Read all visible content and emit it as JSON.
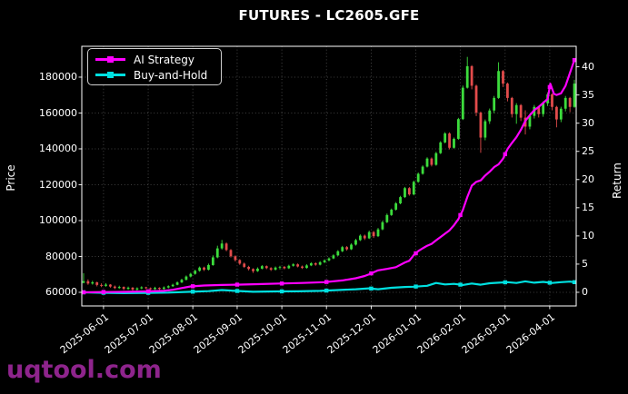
{
  "title": "FUTURES - LC2605.GFE",
  "watermark": "uqtool.com",
  "legend": {
    "items": [
      {
        "label": "AI Strategy",
        "color": "#ff00ff"
      },
      {
        "label": "Buy-and-Hold",
        "color": "#00e0e0"
      }
    ]
  },
  "colors": {
    "background": "#000000",
    "text": "#ffffff",
    "grid": "#545454",
    "spine": "#ffffff",
    "up": "#3cdc3c",
    "down": "#e24b4b",
    "ai": "#ff00ff",
    "bh": "#00e0e0",
    "watermark": "#8e248c"
  },
  "chart_data": {
    "type": "candlestick+line",
    "title": "FUTURES - LC2605.GFE",
    "grid": "dotted",
    "legend_position": "upper-left",
    "x": {
      "tick_labels": [
        "2025-06-01",
        "2025-07-01",
        "2025-08-01",
        "2025-09-01",
        "2025-10-01",
        "2025-11-01",
        "2025-12-01",
        "2026-01-01",
        "2026-02-01",
        "2026-03-01",
        "2026-04-01"
      ],
      "tick_index": [
        4.47,
        14.48,
        24.48,
        34.42,
        44.43,
        54.43,
        64.46,
        74.46,
        84.44,
        94.47,
        104.47
      ],
      "index_range": [
        -0.4,
        110.4
      ]
    },
    "price_axis": {
      "label": "Price",
      "ticks": [
        60000,
        80000,
        100000,
        120000,
        140000,
        160000,
        180000
      ],
      "range": [
        52400,
        197200
      ]
    },
    "return_axis": {
      "label": "Return",
      "ticks": [
        0,
        5,
        10,
        15,
        20,
        25,
        30,
        35,
        40
      ],
      "range": [
        -2.42,
        43.64
      ]
    },
    "marker_index": [
      0,
      4.47,
      14.48,
      24.48,
      34.42,
      44.43,
      54.43,
      64.46,
      74.46,
      84.44,
      94.47,
      104.47,
      110
    ],
    "candles_ohlc": [
      [
        65300,
        70600,
        65000,
        66200
      ],
      [
        66200,
        67200,
        64200,
        64900
      ],
      [
        64900,
        66400,
        64300,
        65600
      ],
      [
        65600,
        65900,
        63300,
        64100
      ],
      [
        64100,
        65000,
        62900,
        63600
      ],
      [
        63600,
        65100,
        63100,
        64300
      ],
      [
        64300,
        64600,
        62600,
        63200
      ],
      [
        63200,
        63800,
        61800,
        62400
      ],
      [
        62400,
        63700,
        61900,
        63000
      ],
      [
        63000,
        63300,
        61300,
        61900
      ],
      [
        61900,
        63200,
        61400,
        62600
      ],
      [
        62600,
        62900,
        60800,
        61500
      ],
      [
        61500,
        62800,
        61000,
        62200
      ],
      [
        62200,
        63400,
        61700,
        62800
      ],
      [
        62800,
        63100,
        61700,
        62300
      ],
      [
        62300,
        62700,
        61200,
        61800
      ],
      [
        61800,
        63100,
        61300,
        62500
      ],
      [
        62500,
        62800,
        61300,
        61900
      ],
      [
        61900,
        63300,
        61500,
        62700
      ],
      [
        62700,
        63900,
        62200,
        63400
      ],
      [
        63400,
        64800,
        63000,
        64200
      ],
      [
        64200,
        66100,
        63900,
        65500
      ],
      [
        65500,
        67600,
        65200,
        67000
      ],
      [
        67000,
        69400,
        66600,
        68800
      ],
      [
        68800,
        70900,
        68300,
        70300
      ],
      [
        70300,
        72600,
        69800,
        72000
      ],
      [
        72000,
        74400,
        71500,
        73800
      ],
      [
        73800,
        74300,
        71900,
        72600
      ],
      [
        72600,
        76000,
        72200,
        75200
      ],
      [
        75200,
        80600,
        74800,
        79500
      ],
      [
        79500,
        86000,
        79000,
        84500
      ],
      [
        84500,
        89200,
        83800,
        87200
      ],
      [
        87200,
        87800,
        82900,
        83600
      ],
      [
        83600,
        84100,
        79400,
        80100
      ],
      [
        80100,
        80600,
        77200,
        78000
      ],
      [
        78000,
        78500,
        75300,
        76000
      ],
      [
        76000,
        76600,
        73600,
        74200
      ],
      [
        74200,
        74800,
        72200,
        73000
      ],
      [
        73000,
        73400,
        70800,
        71800
      ],
      [
        71800,
        73900,
        71400,
        73200
      ],
      [
        73200,
        75200,
        72800,
        74600
      ],
      [
        74600,
        75000,
        72900,
        73500
      ],
      [
        73500,
        74000,
        71900,
        72600
      ],
      [
        72600,
        74400,
        72200,
        73800
      ],
      [
        73800,
        74800,
        72800,
        74200
      ],
      [
        74200,
        74700,
        72800,
        73400
      ],
      [
        73400,
        75400,
        73000,
        74800
      ],
      [
        74800,
        76200,
        74300,
        75600
      ],
      [
        75600,
        76100,
        73900,
        74400
      ],
      [
        74400,
        74900,
        73000,
        73600
      ],
      [
        73600,
        75600,
        73200,
        75000
      ],
      [
        75000,
        76800,
        74600,
        76200
      ],
      [
        76200,
        76700,
        74800,
        75400
      ],
      [
        75400,
        77400,
        75000,
        76800
      ],
      [
        76800,
        78400,
        76300,
        77800
      ],
      [
        77800,
        79500,
        77300,
        78900
      ],
      [
        78900,
        81200,
        78500,
        80600
      ],
      [
        80600,
        83500,
        80200,
        82900
      ],
      [
        82900,
        85900,
        82400,
        85200
      ],
      [
        85200,
        85800,
        83200,
        84000
      ],
      [
        84000,
        87300,
        83600,
        86600
      ],
      [
        86600,
        89800,
        86100,
        89100
      ],
      [
        89100,
        92300,
        88600,
        91600
      ],
      [
        91600,
        92200,
        89200,
        90100
      ],
      [
        90100,
        94400,
        89700,
        93600
      ],
      [
        93600,
        94200,
        90300,
        91300
      ],
      [
        91300,
        95900,
        90800,
        95100
      ],
      [
        95100,
        99900,
        94600,
        99100
      ],
      [
        99100,
        103900,
        98600,
        103100
      ],
      [
        103100,
        106700,
        102600,
        106100
      ],
      [
        106100,
        110300,
        105600,
        109600
      ],
      [
        109600,
        113800,
        109100,
        113100
      ],
      [
        113100,
        118800,
        112600,
        118100
      ],
      [
        118100,
        118700,
        113900,
        114600
      ],
      [
        114600,
        122300,
        114100,
        121600
      ],
      [
        121600,
        126800,
        121100,
        126100
      ],
      [
        126100,
        130800,
        125600,
        130100
      ],
      [
        130100,
        135300,
        129600,
        134600
      ],
      [
        134600,
        135200,
        130200,
        131100
      ],
      [
        131100,
        138300,
        130600,
        137600
      ],
      [
        137600,
        144300,
        137100,
        143600
      ],
      [
        143600,
        149300,
        143100,
        148600
      ],
      [
        148600,
        149200,
        139700,
        140600
      ],
      [
        140600,
        146300,
        140100,
        145600
      ],
      [
        145600,
        157300,
        145100,
        156600
      ],
      [
        156600,
        175300,
        156100,
        174100
      ],
      [
        174100,
        191300,
        173600,
        186100
      ],
      [
        186100,
        186700,
        173200,
        175200
      ],
      [
        175200,
        175800,
        158300,
        160200
      ],
      [
        160200,
        160800,
        137800,
        146300
      ],
      [
        146300,
        156400,
        144800,
        155400
      ],
      [
        155400,
        162500,
        153900,
        161400
      ],
      [
        161400,
        169500,
        159900,
        168400
      ],
      [
        168400,
        188300,
        167900,
        183400
      ],
      [
        183400,
        184000,
        174500,
        176400
      ],
      [
        176400,
        177000,
        166500,
        168400
      ],
      [
        168400,
        169000,
        157500,
        159400
      ],
      [
        159400,
        165500,
        154000,
        164400
      ],
      [
        164400,
        165000,
        155500,
        157400
      ],
      [
        157400,
        161500,
        148000,
        152400
      ],
      [
        152400,
        159500,
        150900,
        158400
      ],
      [
        158400,
        164500,
        156900,
        163400
      ],
      [
        163400,
        164000,
        157500,
        159400
      ],
      [
        159400,
        166500,
        157900,
        165400
      ],
      [
        165400,
        171500,
        163900,
        170400
      ],
      [
        170400,
        171000,
        161500,
        163400
      ],
      [
        163400,
        164000,
        152000,
        156400
      ],
      [
        156400,
        163500,
        154900,
        162400
      ],
      [
        162400,
        169500,
        160900,
        168400
      ],
      [
        168400,
        169000,
        160500,
        163400
      ],
      [
        163400,
        178500,
        162900,
        176400
      ]
    ],
    "series": [
      {
        "name": "AI Strategy",
        "color": "#ff00ff",
        "axis": "return",
        "points": [
          [
            0,
            0
          ],
          [
            4,
            0.05
          ],
          [
            9,
            0.08
          ],
          [
            14,
            0.15
          ],
          [
            18,
            0.25
          ],
          [
            20,
            0.45
          ],
          [
            22,
            0.75
          ],
          [
            24,
            1.05
          ],
          [
            27,
            1.2
          ],
          [
            31,
            1.3
          ],
          [
            34,
            1.35
          ],
          [
            39,
            1.45
          ],
          [
            44,
            1.55
          ],
          [
            49,
            1.65
          ],
          [
            54,
            1.8
          ],
          [
            58,
            2.1
          ],
          [
            61,
            2.5
          ],
          [
            63,
            2.9
          ],
          [
            64,
            3.2
          ],
          [
            66,
            3.9
          ],
          [
            68,
            4.15
          ],
          [
            70,
            4.45
          ],
          [
            72,
            5.3
          ],
          [
            73,
            5.6
          ],
          [
            74,
            6.6
          ],
          [
            75,
            7.3
          ],
          [
            76,
            7.8
          ],
          [
            77,
            8.25
          ],
          [
            78,
            8.6
          ],
          [
            79,
            9.2
          ],
          [
            80,
            9.8
          ],
          [
            81,
            10.4
          ],
          [
            82,
            11.0
          ],
          [
            83,
            11.9
          ],
          [
            84,
            13.0
          ],
          [
            85,
            14.6
          ],
          [
            86,
            16.9
          ],
          [
            87,
            18.9
          ],
          [
            88,
            19.6
          ],
          [
            89,
            19.85
          ],
          [
            90,
            20.7
          ],
          [
            91,
            21.4
          ],
          [
            92,
            22.2
          ],
          [
            93,
            22.7
          ],
          [
            94,
            23.7
          ],
          [
            95,
            25.4
          ],
          [
            96,
            26.5
          ],
          [
            97,
            27.5
          ],
          [
            98,
            28.8
          ],
          [
            99,
            30.4
          ],
          [
            100,
            31.4
          ],
          [
            101,
            32.3
          ],
          [
            102,
            32.9
          ],
          [
            103,
            33.6
          ],
          [
            104,
            34.3
          ],
          [
            104.6,
            37.0
          ],
          [
            105.4,
            35.2
          ],
          [
            106,
            35.0
          ],
          [
            107,
            35.3
          ],
          [
            108,
            36.6
          ],
          [
            109,
            38.9
          ],
          [
            109.6,
            40.3
          ],
          [
            110,
            41.2
          ]
        ]
      },
      {
        "name": "Buy-and-Hold",
        "color": "#00e0e0",
        "axis": "return",
        "points": [
          [
            0,
            0
          ],
          [
            4,
            -0.08
          ],
          [
            9,
            -0.15
          ],
          [
            14,
            -0.1
          ],
          [
            19,
            -0.05
          ],
          [
            24,
            0.1
          ],
          [
            28,
            0.2
          ],
          [
            31,
            0.4
          ],
          [
            34,
            0.25
          ],
          [
            38,
            0.1
          ],
          [
            43,
            0.15
          ],
          [
            48,
            0.18
          ],
          [
            53,
            0.25
          ],
          [
            57,
            0.4
          ],
          [
            61,
            0.55
          ],
          [
            64,
            0.7
          ],
          [
            66,
            0.55
          ],
          [
            69,
            0.8
          ],
          [
            72,
            0.95
          ],
          [
            74,
            1.0
          ],
          [
            77,
            1.15
          ],
          [
            79,
            1.65
          ],
          [
            81,
            1.4
          ],
          [
            83,
            1.5
          ],
          [
            85,
            1.3
          ],
          [
            87,
            1.55
          ],
          [
            89,
            1.35
          ],
          [
            91,
            1.6
          ],
          [
            93,
            1.7
          ],
          [
            95,
            1.8
          ],
          [
            97,
            1.65
          ],
          [
            99,
            1.95
          ],
          [
            101,
            1.7
          ],
          [
            103,
            1.85
          ],
          [
            105,
            1.65
          ],
          [
            107,
            1.8
          ],
          [
            109,
            1.9
          ],
          [
            110,
            1.8
          ]
        ]
      }
    ]
  }
}
